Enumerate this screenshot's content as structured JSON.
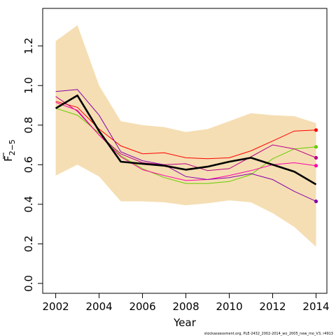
{
  "chart_data": {
    "type": "line",
    "xlabel": "Year",
    "ylabel": "F",
    "ylabel_subscript": "2−5",
    "xlim": [
      2001.4,
      2014.5
    ],
    "ylim": [
      -0.05,
      1.39
    ],
    "x_ticks": [
      2002,
      2004,
      2006,
      2008,
      2010,
      2012,
      2014
    ],
    "y_ticks": [
      0.0,
      0.2,
      0.4,
      0.6,
      0.8,
      1.0,
      1.2
    ],
    "y_tick_labels": [
      "0.0",
      "0.2",
      "0.4",
      "0.6",
      "0.8",
      "1.0",
      "1.2"
    ],
    "grid": false,
    "x": [
      2002,
      2003,
      2004,
      2005,
      2006,
      2007,
      2008,
      2009,
      2010,
      2011,
      2012,
      2013,
      2014
    ],
    "band": {
      "color": "#F5DEB3",
      "upper": [
        1.225,
        1.305,
        1.0,
        0.82,
        0.8,
        0.79,
        0.765,
        0.78,
        0.82,
        0.86,
        0.85,
        0.845,
        0.81
      ],
      "lower": [
        0.545,
        0.6,
        0.54,
        0.415,
        0.415,
        0.41,
        0.395,
        0.405,
        0.42,
        0.41,
        0.355,
        0.285,
        0.185
      ]
    },
    "main_series": {
      "color": "#000000",
      "values": [
        0.885,
        0.95,
        0.77,
        0.615,
        0.605,
        0.595,
        0.575,
        0.59,
        0.615,
        0.635,
        0.6,
        0.565,
        0.5
      ]
    },
    "series": [
      {
        "color": "#FF0000",
        "values": [
          0.92,
          0.89,
          0.78,
          0.695,
          0.655,
          0.66,
          0.635,
          0.63,
          0.635,
          0.67,
          0.72,
          0.77,
          0.775
        ],
        "end_marker": true
      },
      {
        "color": "#66CC00",
        "values": [
          0.885,
          0.85,
          0.76,
          0.645,
          0.58,
          0.535,
          0.505,
          0.505,
          0.515,
          0.55,
          0.63,
          0.68,
          0.69
        ],
        "end_marker": true
      },
      {
        "color": "#BB0088",
        "values": [
          0.945,
          0.87,
          0.75,
          0.655,
          0.61,
          0.6,
          0.605,
          0.57,
          0.58,
          0.64,
          0.7,
          0.68,
          0.635
        ],
        "end_marker": true
      },
      {
        "color": "#FF00AA",
        "values": [
          0.915,
          0.875,
          0.75,
          0.64,
          0.575,
          0.545,
          0.52,
          0.525,
          0.545,
          0.57,
          0.6,
          0.61,
          0.595
        ],
        "end_marker": true
      },
      {
        "color": "#8800AA",
        "values": [
          0.97,
          0.98,
          0.85,
          0.665,
          0.62,
          0.6,
          0.54,
          0.525,
          0.535,
          0.555,
          0.525,
          0.465,
          0.415
        ],
        "end_marker": true
      }
    ],
    "footer": "stockassessment.org, PLE-2432_2002-2014_wo_2005_new_mo_V3, r4913"
  }
}
